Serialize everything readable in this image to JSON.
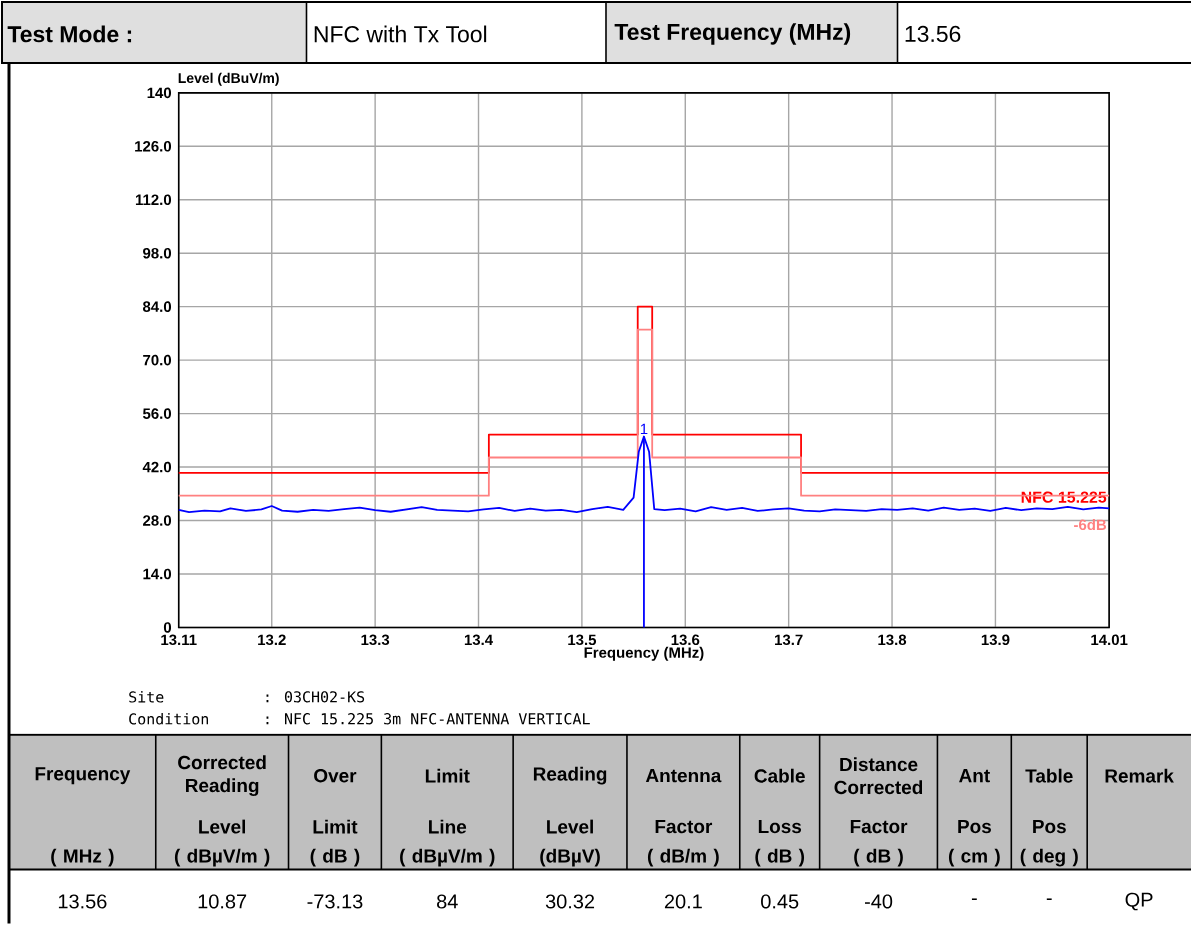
{
  "chart_data": {
    "type": "line",
    "xlabel": "Frequency (MHz)",
    "ylabel": "Level (dBuV/m)",
    "xlim": [
      13.11,
      14.01
    ],
    "ylim": [
      0,
      140
    ],
    "xticks": [
      13.11,
      13.2,
      13.3,
      13.4,
      13.5,
      13.6,
      13.7,
      13.8,
      13.9,
      14.01
    ],
    "yticks": [
      {
        "value": 0,
        "label": "0"
      },
      {
        "value": 14,
        "label": "14.0"
      },
      {
        "value": 28,
        "label": "28.0"
      },
      {
        "value": 42,
        "label": "42.0"
      },
      {
        "value": 56,
        "label": "56.0"
      },
      {
        "value": 70,
        "label": "70.0"
      },
      {
        "value": 84,
        "label": "84.0"
      },
      {
        "value": 98,
        "label": "98.0"
      },
      {
        "value": 112,
        "label": "112.0"
      },
      {
        "value": 126,
        "label": "126.0"
      },
      {
        "value": 140,
        "label": "140"
      }
    ],
    "grid": true,
    "series": [
      {
        "name": "NFC 15.225",
        "color": "#ff0000",
        "x": [
          13.11,
          13.41,
          13.41,
          13.554,
          13.554,
          13.568,
          13.568,
          13.712,
          13.712,
          14.01
        ],
        "values": [
          40.5,
          40.5,
          50.5,
          50.5,
          84,
          84,
          50.5,
          50.5,
          40.5,
          40.5
        ]
      },
      {
        "name": "-6dB",
        "color": "#ff8080",
        "x": [
          13.11,
          13.41,
          13.41,
          13.554,
          13.554,
          13.568,
          13.568,
          13.712,
          13.712,
          14.01
        ],
        "values": [
          34.5,
          34.5,
          44.5,
          44.5,
          78,
          78,
          44.5,
          44.5,
          34.5,
          34.5
        ]
      },
      {
        "color": "#0000ff",
        "x": [
          13.11,
          13.12,
          13.135,
          13.15,
          13.16,
          13.175,
          13.19,
          13.2,
          13.21,
          13.225,
          13.24,
          13.255,
          13.27,
          13.285,
          13.3,
          13.315,
          13.33,
          13.345,
          13.36,
          13.375,
          13.39,
          13.405,
          13.42,
          13.435,
          13.45,
          13.465,
          13.48,
          13.495,
          13.51,
          13.525,
          13.54,
          13.55,
          13.555,
          13.56,
          13.565,
          13.57,
          13.58,
          13.595,
          13.61,
          13.625,
          13.64,
          13.655,
          13.67,
          13.685,
          13.7,
          13.715,
          13.73,
          13.745,
          13.76,
          13.775,
          13.79,
          13.805,
          13.82,
          13.835,
          13.85,
          13.865,
          13.88,
          13.895,
          13.91,
          13.925,
          13.94,
          13.955,
          13.97,
          13.985,
          14.0,
          14.01
        ],
        "values": [
          30.8,
          30.2,
          30.6,
          30.4,
          31.2,
          30.5,
          30.9,
          31.8,
          30.6,
          30.3,
          30.8,
          30.5,
          31.0,
          31.4,
          30.7,
          30.3,
          30.9,
          31.5,
          30.8,
          30.6,
          30.4,
          30.9,
          31.3,
          30.5,
          31.1,
          30.6,
          30.8,
          30.2,
          31.0,
          31.6,
          30.8,
          34,
          46,
          50,
          46,
          31,
          30.7,
          31.1,
          30.4,
          31.5,
          30.8,
          31.3,
          30.5,
          30.9,
          31.2,
          30.6,
          30.4,
          30.9,
          30.7,
          30.5,
          31.0,
          30.8,
          31.2,
          30.6,
          31.4,
          30.8,
          31.1,
          30.5,
          31.3,
          30.7,
          31.2,
          31.0,
          31.6,
          30.9,
          31.4,
          31.2
        ]
      },
      {
        "color": "#0000ff",
        "x": [
          13.56,
          13.56
        ],
        "values": [
          0,
          50
        ]
      }
    ],
    "annotations": [
      {
        "text": "1",
        "x": 13.56,
        "y": 50
      },
      "Test Mode :",
      "NFC with Tx Tool",
      "Test Frequency (MHz)",
      "13.56",
      "Site",
      ": 03CH02-KS",
      "Condition",
      ": NFC 15.225 3m NFC-ANTENNA VERTICAL",
      "Frequency",
      "( MHz )",
      "Corrected Reading",
      "Level",
      "( dBµV/m )",
      "Over",
      "Limit",
      "( dB )",
      "Limit",
      "Line",
      "( dBµV/m )",
      "Reading",
      "Level",
      "(dBµV)",
      "Antenna",
      "Factor",
      "( dB/m )",
      "Cable",
      "Loss",
      "( dB )",
      "Distance Corrected",
      "Factor",
      "( dB )",
      "Ant",
      "Pos",
      "( cm )",
      "Table",
      "Pos",
      "( deg )",
      "Remark",
      "13.56",
      "10.87",
      "-73.13",
      "84",
      "30.32",
      "20.1",
      "0.45",
      "-40",
      "-",
      "-",
      "QP"
    ]
  }
}
